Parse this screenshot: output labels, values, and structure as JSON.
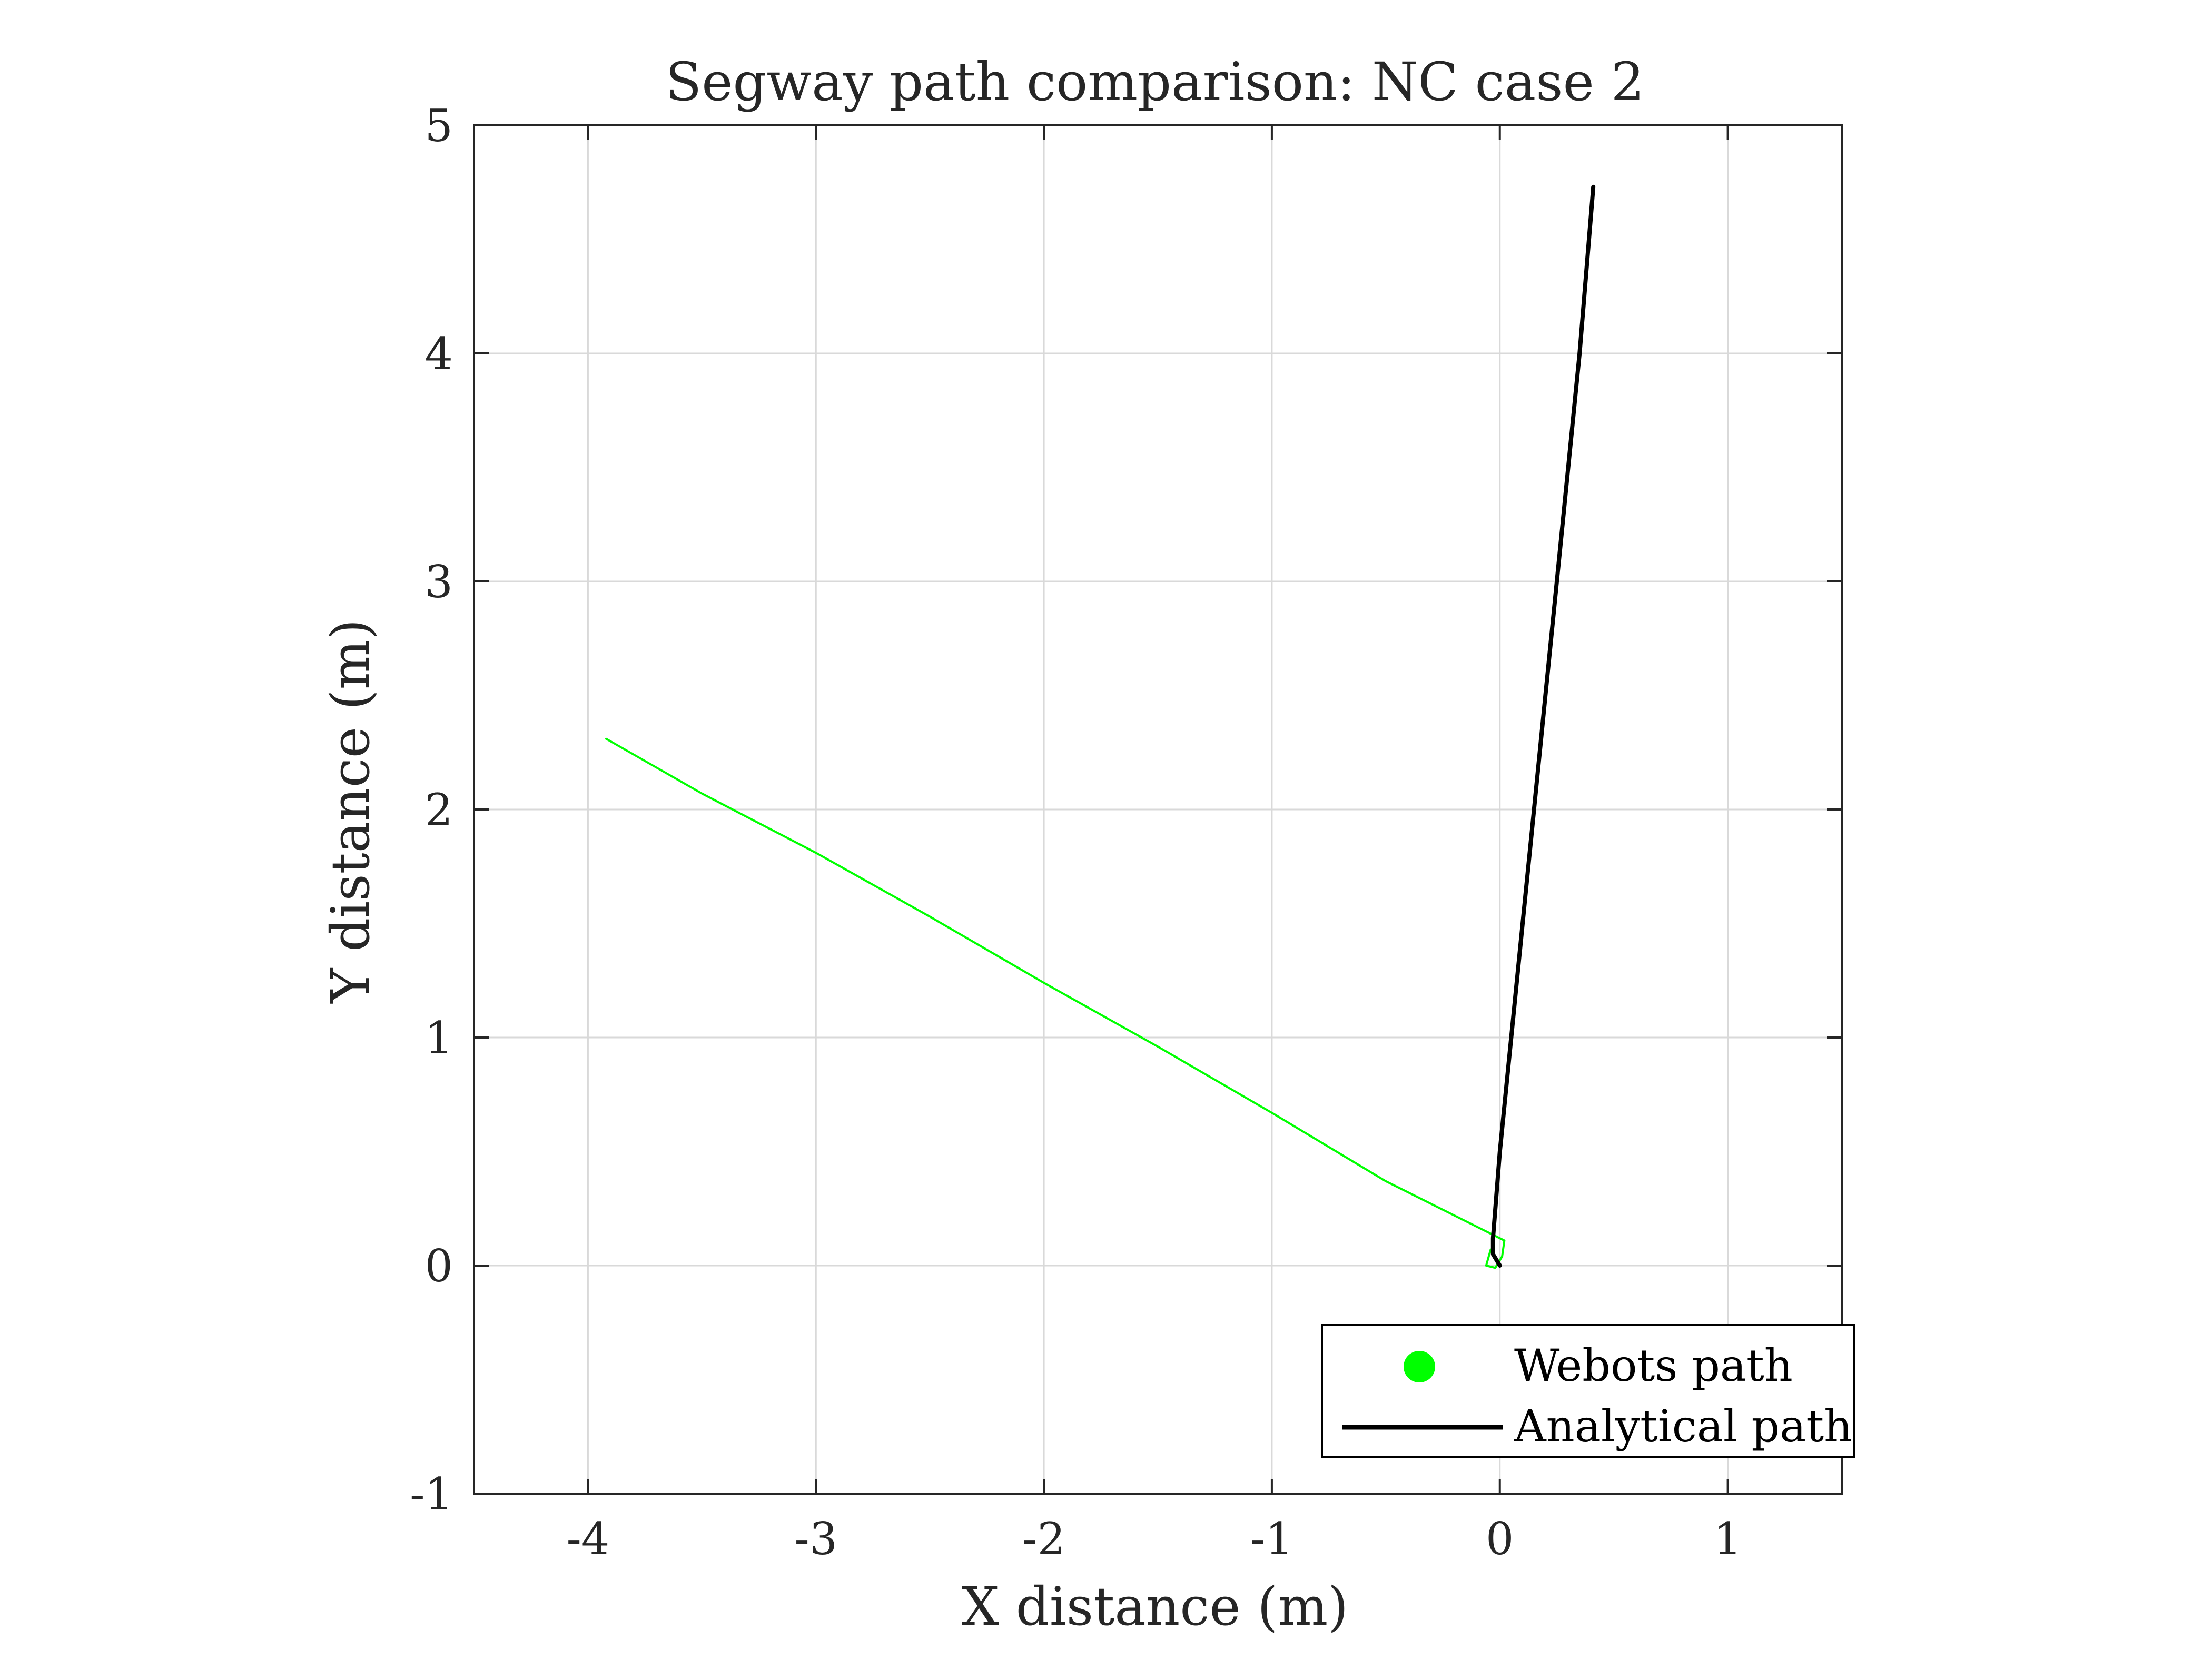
{
  "chart_data": {
    "type": "line",
    "title": "Segway path comparison: NC case 2",
    "xlabel": "X distance (m)",
    "ylabel": "Y distance (m)",
    "xlim": [
      -4.5,
      1.5
    ],
    "ylim": [
      -1,
      5
    ],
    "x_ticks": [
      -4,
      -3,
      -2,
      -1,
      0,
      1
    ],
    "y_ticks": [
      -1,
      0,
      1,
      2,
      3,
      4,
      5
    ],
    "x_tick_labels": [
      "-4",
      "-3",
      "-2",
      "-1",
      "0",
      "1"
    ],
    "y_tick_labels": [
      "-1",
      "0",
      "1",
      "2",
      "3",
      "4",
      "5"
    ],
    "grid": true,
    "legend_position": "bottom-right",
    "series": [
      {
        "name": "Webots path",
        "color": "#00ff00",
        "marker": "dot",
        "points": [
          [
            -0.04,
            0.07
          ],
          [
            -0.06,
            0.0
          ],
          [
            -0.02,
            -0.01
          ],
          [
            0.01,
            0.04
          ],
          [
            0.02,
            0.11
          ],
          [
            -0.5,
            0.37
          ],
          [
            -1.0,
            0.67
          ],
          [
            -1.5,
            0.96
          ],
          [
            -2.0,
            1.24
          ],
          [
            -2.5,
            1.53
          ],
          [
            -3.0,
            1.81
          ],
          [
            -3.5,
            2.07
          ],
          [
            -3.92,
            2.31
          ]
        ]
      },
      {
        "name": "Analytical path",
        "color": "#000000",
        "marker": "line",
        "points": [
          [
            0.0,
            0.0
          ],
          [
            -0.03,
            0.05
          ],
          [
            -0.03,
            0.12
          ],
          [
            0.0,
            0.5
          ],
          [
            0.05,
            1.0
          ],
          [
            0.1,
            1.5
          ],
          [
            0.15,
            2.0
          ],
          [
            0.2,
            2.5
          ],
          [
            0.25,
            3.0
          ],
          [
            0.3,
            3.5
          ],
          [
            0.35,
            4.0
          ],
          [
            0.41,
            4.73
          ]
        ]
      }
    ]
  }
}
